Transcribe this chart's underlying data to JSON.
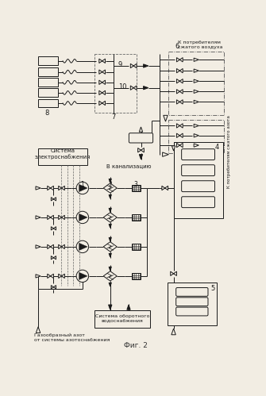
{
  "title": "Фиг. 2",
  "bg": "#f2ede3",
  "lc": "#1a1a1a",
  "label6": "6",
  "label7": "7",
  "label8": "8",
  "label9": "9",
  "label10": "10",
  "label1": "1",
  "label2": "2",
  "label3": "3",
  "label4": "4",
  "label5": "5",
  "text_air": "К потребителям\nсжатого воздуха",
  "text_n2": "К потребителям сжатого азота",
  "text_elec": "Система\nэлектроснабжения",
  "text_water": "Система оборотного\nводоснабжения",
  "text_canal": "В канализацию",
  "text_n2_in": "Газообразный азот\nот системы азотоснабжения"
}
